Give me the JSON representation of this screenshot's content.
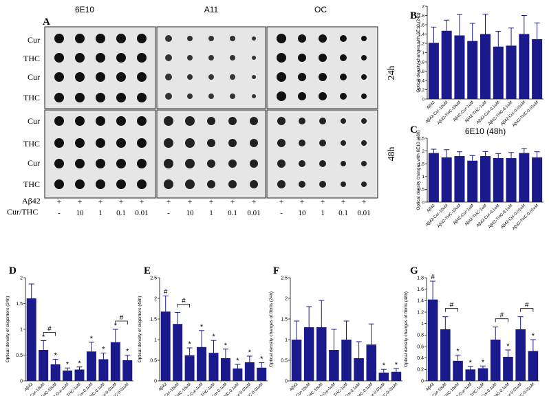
{
  "figure": {
    "panel_A": {
      "letter": "A",
      "antibodies": [
        "6E10",
        "A11",
        "OC"
      ],
      "row_labels_top": [
        "Cur",
        "THC",
        "Cur",
        "THC"
      ],
      "row_labels_bottom": [
        "Cur",
        "THC",
        "Cur",
        "THC"
      ],
      "time_top": "24h",
      "time_bottom": "48h",
      "abeta_label": "Aβ42",
      "abeta_marks": [
        "+",
        "+",
        "+",
        "+",
        "+"
      ],
      "curthc_label": "Cur/THC",
      "concentrations": [
        "-",
        "10",
        "1",
        "0.1",
        "0.01"
      ]
    },
    "bar_color": "#1a1a8c",
    "categories": [
      "Aβ42",
      "Aβ42-Cur-10uM",
      "Aβ42-THC-10uM",
      "Aβ42-Cur-1uM",
      "Aβ42-THC-1uM",
      "Aβ42-Cur-0.1uM",
      "Aβ42-THC-0.1uM",
      "Aβ42-Cur-0.01uM",
      "Aβ42-THC-0.01uM"
    ]
  },
  "chart_data": [
    {
      "id": "B",
      "type": "bar",
      "letter": "B",
      "title": "",
      "ylabel": "Optical density changes with 6E10 (24h)",
      "ylim": [
        0,
        2
      ],
      "yticks": [
        "0",
        "0.2",
        "0.4",
        "0.6",
        "0.8",
        "1",
        "1.2",
        "1.4",
        "1.6",
        "1.8",
        "2"
      ],
      "values": [
        1.21,
        1.47,
        1.37,
        1.25,
        1.4,
        1.13,
        1.15,
        1.4,
        1.29
      ],
      "errors": [
        0.34,
        0.23,
        0.45,
        0.38,
        0.43,
        0.33,
        0.38,
        0.4,
        0.35
      ],
      "stars": [],
      "hash": [],
      "brackets": []
    },
    {
      "id": "C",
      "type": "bar",
      "letter": "C",
      "title": "6E10 (48h)",
      "ylabel": "Optical density changes with 6E10 (48h)",
      "ylim": [
        0,
        2.5
      ],
      "yticks": [
        "0",
        "0.5",
        "1",
        "1.5",
        "2",
        "2.5"
      ],
      "values": [
        1.92,
        1.75,
        1.8,
        1.62,
        1.8,
        1.72,
        1.72,
        1.92,
        1.75
      ],
      "errors": [
        0.15,
        0.3,
        0.17,
        0.2,
        0.18,
        0.18,
        0.22,
        0.18,
        0.22
      ],
      "stars": [],
      "hash": [],
      "brackets": []
    },
    {
      "id": "D",
      "type": "bar",
      "letter": "D",
      "title": "",
      "ylabel": "Optical density of oligomers (24h)",
      "ylim": [
        0,
        2
      ],
      "yticks": [
        "0",
        "0.5",
        "1",
        "1.5",
        "2"
      ],
      "values": [
        1.6,
        0.6,
        0.32,
        0.2,
        0.22,
        0.57,
        0.42,
        0.75,
        0.4
      ],
      "errors": [
        0.28,
        0.18,
        0.1,
        0.05,
        0.05,
        0.18,
        0.12,
        0.25,
        0.1
      ],
      "stars": [
        1,
        2,
        3,
        4,
        5,
        6,
        7,
        8
      ],
      "hash": [],
      "hash_symbol": "#",
      "brackets": [
        [
          1,
          2
        ],
        [
          7,
          8
        ]
      ]
    },
    {
      "id": "E",
      "type": "bar",
      "letter": "E",
      "title": "",
      "ylabel": "Optical density of oligomers (48h)",
      "ylim": [
        0,
        2.5
      ],
      "yticks": [
        "0",
        "0.5",
        "1",
        "1.5",
        "2",
        "2.5"
      ],
      "values": [
        1.68,
        1.38,
        0.62,
        0.82,
        0.68,
        0.55,
        0.3,
        0.45,
        0.32
      ],
      "errors": [
        0.38,
        0.28,
        0.18,
        0.4,
        0.3,
        0.22,
        0.1,
        0.15,
        0.12
      ],
      "stars": [
        2,
        3,
        4,
        5,
        6,
        7,
        8
      ],
      "hash": [
        0
      ],
      "hash_symbol": "#",
      "brackets": [
        [
          1,
          2
        ]
      ]
    },
    {
      "id": "F",
      "type": "bar",
      "letter": "F",
      "title": "",
      "ylabel": "Optical density changes of fibrils (24h)",
      "ylim": [
        0,
        2.5
      ],
      "yticks": [
        "0",
        "0.5",
        "1",
        "1.5",
        "2",
        "2.5"
      ],
      "values": [
        1.0,
        1.3,
        1.3,
        0.75,
        1.0,
        0.55,
        0.88,
        0.2,
        0.22
      ],
      "errors": [
        0.45,
        0.5,
        0.65,
        0.5,
        0.45,
        0.4,
        0.5,
        0.08,
        0.08
      ],
      "stars": [
        7,
        8
      ],
      "hash": [],
      "hash_symbol": "#",
      "brackets": []
    },
    {
      "id": "G",
      "type": "bar",
      "letter": "G",
      "title": "",
      "ylabel": "Optical density changes of fibrils (48h)",
      "ylim": [
        0,
        1.8
      ],
      "yticks": [
        "0",
        "0.2",
        "0.4",
        "0.6",
        "0.8",
        "1",
        "1.2",
        "1.4",
        "1.6",
        "1.8"
      ],
      "values": [
        1.42,
        0.9,
        0.35,
        0.2,
        0.22,
        0.72,
        0.42,
        0.9,
        0.52
      ],
      "errors": [
        0.32,
        0.22,
        0.1,
        0.05,
        0.04,
        0.22,
        0.12,
        0.22,
        0.2
      ],
      "stars": [
        2,
        3,
        4,
        6,
        8
      ],
      "hash": [
        0
      ],
      "hash_symbol": "#",
      "brackets": [
        [
          1,
          2
        ],
        [
          5,
          6
        ],
        [
          7,
          8
        ]
      ]
    }
  ]
}
